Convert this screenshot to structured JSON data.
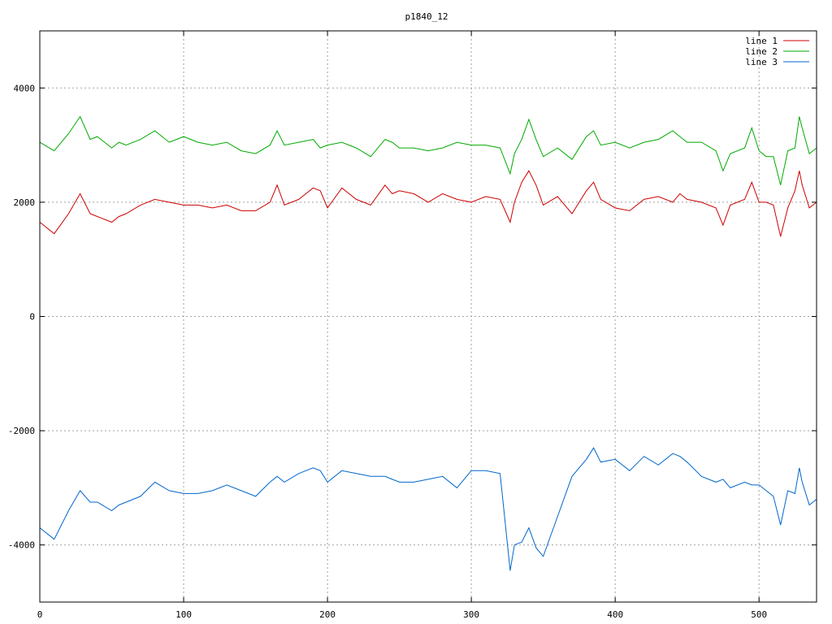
{
  "chart_data": {
    "type": "line",
    "title": "p1840_12",
    "xlabel": "",
    "ylabel": "",
    "xlim": [
      0,
      540
    ],
    "ylim": [
      -5000,
      5000
    ],
    "x_ticks": [
      "0",
      "100",
      "200",
      "300",
      "400",
      "500"
    ],
    "x_tick_values": [
      0,
      100,
      200,
      300,
      400,
      500
    ],
    "y_ticks": [
      "4000",
      "2000",
      "0",
      "-2000",
      "-4000"
    ],
    "y_tick_values": [
      4000,
      2000,
      0,
      -2000,
      -4000
    ],
    "grid": true,
    "legend_position": "top-right",
    "x": [
      0,
      10,
      20,
      28,
      35,
      40,
      50,
      55,
      60,
      70,
      80,
      90,
      100,
      110,
      120,
      130,
      140,
      150,
      160,
      165,
      170,
      180,
      190,
      195,
      200,
      210,
      220,
      230,
      240,
      245,
      250,
      260,
      270,
      280,
      290,
      300,
      310,
      320,
      327,
      330,
      335,
      340,
      345,
      350,
      360,
      370,
      380,
      385,
      390,
      400,
      410,
      420,
      430,
      440,
      445,
      450,
      460,
      470,
      475,
      480,
      490,
      495,
      500,
      505,
      510,
      515,
      520,
      525,
      528,
      530,
      535,
      540
    ],
    "series": [
      {
        "name": "line 1",
        "color": "#cc0000",
        "values": [
          1650,
          1450,
          1800,
          2150,
          1800,
          1750,
          1650,
          1750,
          1800,
          1950,
          2050,
          2000,
          1950,
          1950,
          1900,
          1950,
          1850,
          1850,
          2000,
          2300,
          1950,
          2050,
          2250,
          2200,
          1900,
          2250,
          2050,
          1950,
          2300,
          2150,
          2200,
          2150,
          2000,
          2150,
          2050,
          2000,
          2100,
          2050,
          1650,
          2000,
          2350,
          2550,
          2300,
          1950,
          2100,
          1800,
          2200,
          2350,
          2050,
          1900,
          1850,
          2050,
          2100,
          2000,
          2150,
          2050,
          2000,
          1900,
          1600,
          1950,
          2050,
          2350,
          2000,
          2000,
          1950,
          1400,
          1900,
          2200,
          2550,
          2300,
          1900,
          2000
        ]
      },
      {
        "name": "line 2",
        "color": "#00aa00",
        "values": [
          3050,
          2900,
          3200,
          3500,
          3100,
          3150,
          2950,
          3050,
          3000,
          3100,
          3250,
          3050,
          3150,
          3050,
          3000,
          3050,
          2900,
          2850,
          3000,
          3250,
          3000,
          3050,
          3100,
          2950,
          3000,
          3050,
          2950,
          2800,
          3100,
          3050,
          2950,
          2950,
          2900,
          2950,
          3050,
          3000,
          3000,
          2950,
          2500,
          2850,
          3100,
          3450,
          3100,
          2800,
          2950,
          2750,
          3150,
          3250,
          3000,
          3050,
          2950,
          3050,
          3100,
          3250,
          3150,
          3050,
          3050,
          2900,
          2550,
          2850,
          2950,
          3300,
          2900,
          2800,
          2800,
          2300,
          2900,
          2950,
          3500,
          3300,
          2850,
          2950
        ]
      },
      {
        "name": "line 3",
        "color": "#0066cc",
        "values": [
          -3700,
          -3900,
          -3400,
          -3050,
          -3250,
          -3250,
          -3400,
          -3300,
          -3250,
          -3150,
          -2900,
          -3050,
          -3100,
          -3100,
          -3050,
          -2950,
          -3050,
          -3150,
          -2900,
          -2800,
          -2900,
          -2750,
          -2650,
          -2700,
          -2900,
          -2700,
          -2750,
          -2800,
          -2800,
          -2850,
          -2900,
          -2900,
          -2850,
          -2800,
          -3000,
          -2700,
          -2700,
          -2750,
          -4450,
          -4000,
          -3950,
          -3700,
          -4050,
          -4200,
          -3500,
          -2800,
          -2500,
          -2300,
          -2550,
          -2500,
          -2700,
          -2450,
          -2600,
          -2400,
          -2450,
          -2550,
          -2800,
          -2900,
          -2850,
          -3000,
          -2900,
          -2950,
          -2950,
          -3050,
          -3150,
          -3650,
          -3050,
          -3100,
          -2650,
          -2900,
          -3300,
          -3200
        ]
      }
    ]
  }
}
